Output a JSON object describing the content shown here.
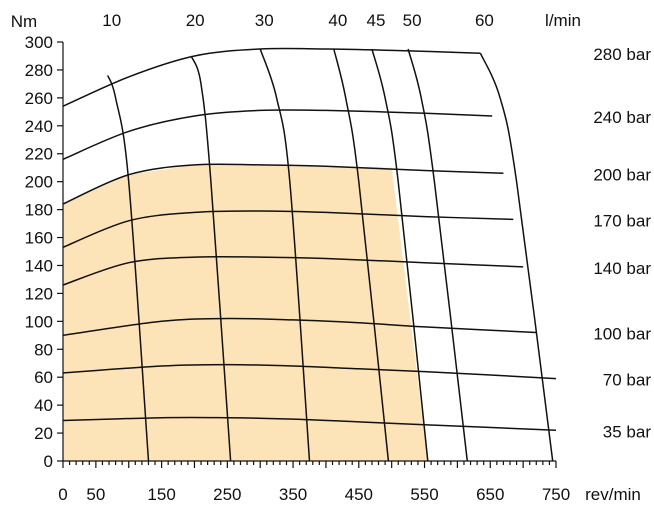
{
  "chart_data": {
    "type": "line",
    "title": "",
    "xlabel": "rev/min",
    "ylabel": "Nm",
    "top_axis_label": "l/min",
    "xlim": [
      0,
      750
    ],
    "ylim": [
      0,
      300
    ],
    "x_ticks": [
      0,
      50,
      150,
      250,
      350,
      450,
      550,
      650,
      750
    ],
    "y_ticks": [
      0,
      20,
      40,
      60,
      80,
      100,
      120,
      140,
      160,
      180,
      200,
      220,
      240,
      260,
      280,
      300
    ],
    "flow_ticks": [
      10,
      20,
      30,
      40,
      45,
      50,
      60
    ],
    "colors": {
      "region": "#fde3b8",
      "line": "#111111"
    },
    "pressure_series": [
      {
        "name": "35 bar",
        "points": [
          [
            0,
            29
          ],
          [
            150,
            31
          ],
          [
            250,
            31
          ],
          [
            350,
            30
          ],
          [
            450,
            28
          ],
          [
            550,
            26
          ],
          [
            750,
            22
          ]
        ]
      },
      {
        "name": "70 bar",
        "points": [
          [
            0,
            63
          ],
          [
            150,
            68
          ],
          [
            250,
            69
          ],
          [
            350,
            68
          ],
          [
            450,
            66
          ],
          [
            550,
            64
          ],
          [
            750,
            59
          ]
        ]
      },
      {
        "name": "100 bar",
        "points": [
          [
            0,
            90
          ],
          [
            150,
            100
          ],
          [
            250,
            102
          ],
          [
            350,
            101
          ],
          [
            450,
            99
          ],
          [
            550,
            96
          ],
          [
            720,
            92
          ]
        ]
      },
      {
        "name": "140 bar",
        "points": [
          [
            0,
            126
          ],
          [
            100,
            142
          ],
          [
            200,
            146
          ],
          [
            300,
            146
          ],
          [
            400,
            145
          ],
          [
            550,
            142
          ],
          [
            700,
            139
          ]
        ]
      },
      {
        "name": "170 bar",
        "points": [
          [
            0,
            153
          ],
          [
            100,
            172
          ],
          [
            200,
            178
          ],
          [
            300,
            179
          ],
          [
            400,
            178
          ],
          [
            550,
            175
          ],
          [
            685,
            173
          ]
        ]
      },
      {
        "name": "200 bar",
        "points": [
          [
            0,
            184
          ],
          [
            100,
            205
          ],
          [
            200,
            212
          ],
          [
            300,
            212
          ],
          [
            400,
            211
          ],
          [
            550,
            208
          ],
          [
            670,
            206
          ]
        ]
      },
      {
        "name": "240 bar",
        "points": [
          [
            0,
            216
          ],
          [
            100,
            236
          ],
          [
            200,
            247
          ],
          [
            300,
            251
          ],
          [
            400,
            251
          ],
          [
            550,
            249
          ],
          [
            653,
            247
          ]
        ]
      },
      {
        "name": "280 bar",
        "points": [
          [
            0,
            254
          ],
          [
            100,
            275
          ],
          [
            200,
            290
          ],
          [
            300,
            295
          ],
          [
            400,
            295
          ],
          [
            500,
            294
          ],
          [
            635,
            292
          ]
        ]
      }
    ],
    "flow_series": [
      {
        "name": "10",
        "points": [
          [
            130,
            0
          ],
          [
            100,
            200
          ],
          [
            80,
            260
          ],
          [
            68,
            276
          ]
        ]
      },
      {
        "name": "20",
        "points": [
          [
            255,
            0
          ],
          [
            225,
            200
          ],
          [
            210,
            270
          ],
          [
            195,
            290
          ]
        ]
      },
      {
        "name": "30",
        "points": [
          [
            375,
            0
          ],
          [
            345,
            200
          ],
          [
            325,
            260
          ],
          [
            300,
            295
          ]
        ]
      },
      {
        "name": "40",
        "points": [
          [
            495,
            0
          ],
          [
            450,
            200
          ],
          [
            430,
            260
          ],
          [
            412,
            295
          ]
        ]
      },
      {
        "name": "45",
        "points": [
          [
            555,
            0
          ],
          [
            510,
            200
          ],
          [
            490,
            260
          ],
          [
            470,
            295
          ]
        ]
      },
      {
        "name": "50",
        "points": [
          [
            615,
            0
          ],
          [
            565,
            200
          ],
          [
            545,
            260
          ],
          [
            525,
            295
          ]
        ]
      },
      {
        "name": "60",
        "points": [
          [
            745,
            0
          ],
          [
            690,
            200
          ],
          [
            665,
            260
          ],
          [
            635,
            292
          ]
        ]
      }
    ],
    "shaded_region": [
      [
        0,
        0
      ],
      [
        0,
        184
      ],
      [
        100,
        205
      ],
      [
        200,
        212
      ],
      [
        300,
        212
      ],
      [
        400,
        211
      ],
      [
        500,
        210
      ],
      [
        555,
        0
      ]
    ]
  }
}
